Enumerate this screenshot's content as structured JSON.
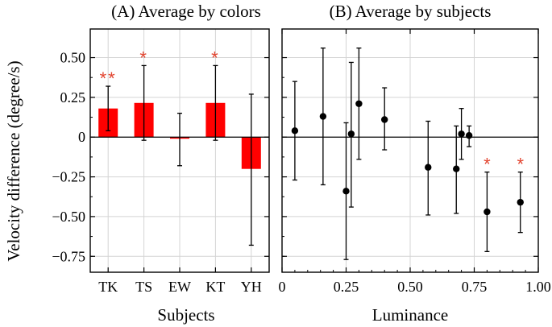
{
  "figure": {
    "ylabel": "Velocity difference (degree/s)"
  },
  "chart_data": [
    {
      "type": "bar",
      "title": "(A) Average by colors",
      "xlabel": "Subjects",
      "ylabel": "Velocity difference (degree/s)",
      "ylim": [
        -0.85,
        0.68
      ],
      "yticks": [
        0.5,
        0.25,
        0,
        -0.25,
        -0.5,
        -0.75
      ],
      "ytick_labels": [
        "0.50",
        "0.25",
        "0",
        "−0.25",
        "−0.50",
        "−0.75"
      ],
      "categories": [
        "TK",
        "TS",
        "EW",
        "KT",
        "YH"
      ],
      "values": [
        0.18,
        0.215,
        -0.01,
        0.215,
        -0.2
      ],
      "err_low": [
        0.04,
        -0.02,
        -0.18,
        -0.02,
        -0.68
      ],
      "err_high": [
        0.32,
        0.45,
        0.15,
        0.45,
        0.27
      ],
      "significance": [
        "**",
        "*",
        "",
        "*",
        ""
      ],
      "bar_color": "#ff0000",
      "star_color": "#e2442f",
      "grid": true
    },
    {
      "type": "scatter",
      "title": "(B) Average by subjects",
      "xlabel": "Luminance",
      "xlim": [
        0,
        1.0
      ],
      "ylim": [
        -0.85,
        0.68
      ],
      "xticks": [
        0,
        0.25,
        0.5,
        0.75,
        1.0
      ],
      "xtick_labels": [
        "0",
        "0.25",
        "0.50",
        "0.75",
        "1.00"
      ],
      "points": [
        {
          "x": 0.05,
          "y": 0.04,
          "lo": -0.27,
          "hi": 0.35,
          "sig": ""
        },
        {
          "x": 0.16,
          "y": 0.13,
          "lo": -0.3,
          "hi": 0.56,
          "sig": ""
        },
        {
          "x": 0.25,
          "y": -0.34,
          "lo": -0.77,
          "hi": 0.09,
          "sig": ""
        },
        {
          "x": 0.27,
          "y": 0.02,
          "lo": -0.44,
          "hi": 0.47,
          "sig": ""
        },
        {
          "x": 0.3,
          "y": 0.21,
          "lo": -0.14,
          "hi": 0.56,
          "sig": ""
        },
        {
          "x": 0.4,
          "y": 0.11,
          "lo": -0.08,
          "hi": 0.31,
          "sig": ""
        },
        {
          "x": 0.57,
          "y": -0.19,
          "lo": -0.49,
          "hi": 0.1,
          "sig": ""
        },
        {
          "x": 0.68,
          "y": -0.2,
          "lo": -0.48,
          "hi": 0.07,
          "sig": ""
        },
        {
          "x": 0.7,
          "y": 0.02,
          "lo": -0.14,
          "hi": 0.18,
          "sig": ""
        },
        {
          "x": 0.73,
          "y": 0.01,
          "lo": -0.06,
          "hi": 0.07,
          "sig": ""
        },
        {
          "x": 0.8,
          "y": -0.47,
          "lo": -0.72,
          "hi": -0.22,
          "sig": "*"
        },
        {
          "x": 0.93,
          "y": -0.41,
          "lo": -0.6,
          "hi": -0.22,
          "sig": "*"
        }
      ],
      "marker_color": "#000000",
      "star_color": "#e2442f",
      "grid": true
    }
  ]
}
